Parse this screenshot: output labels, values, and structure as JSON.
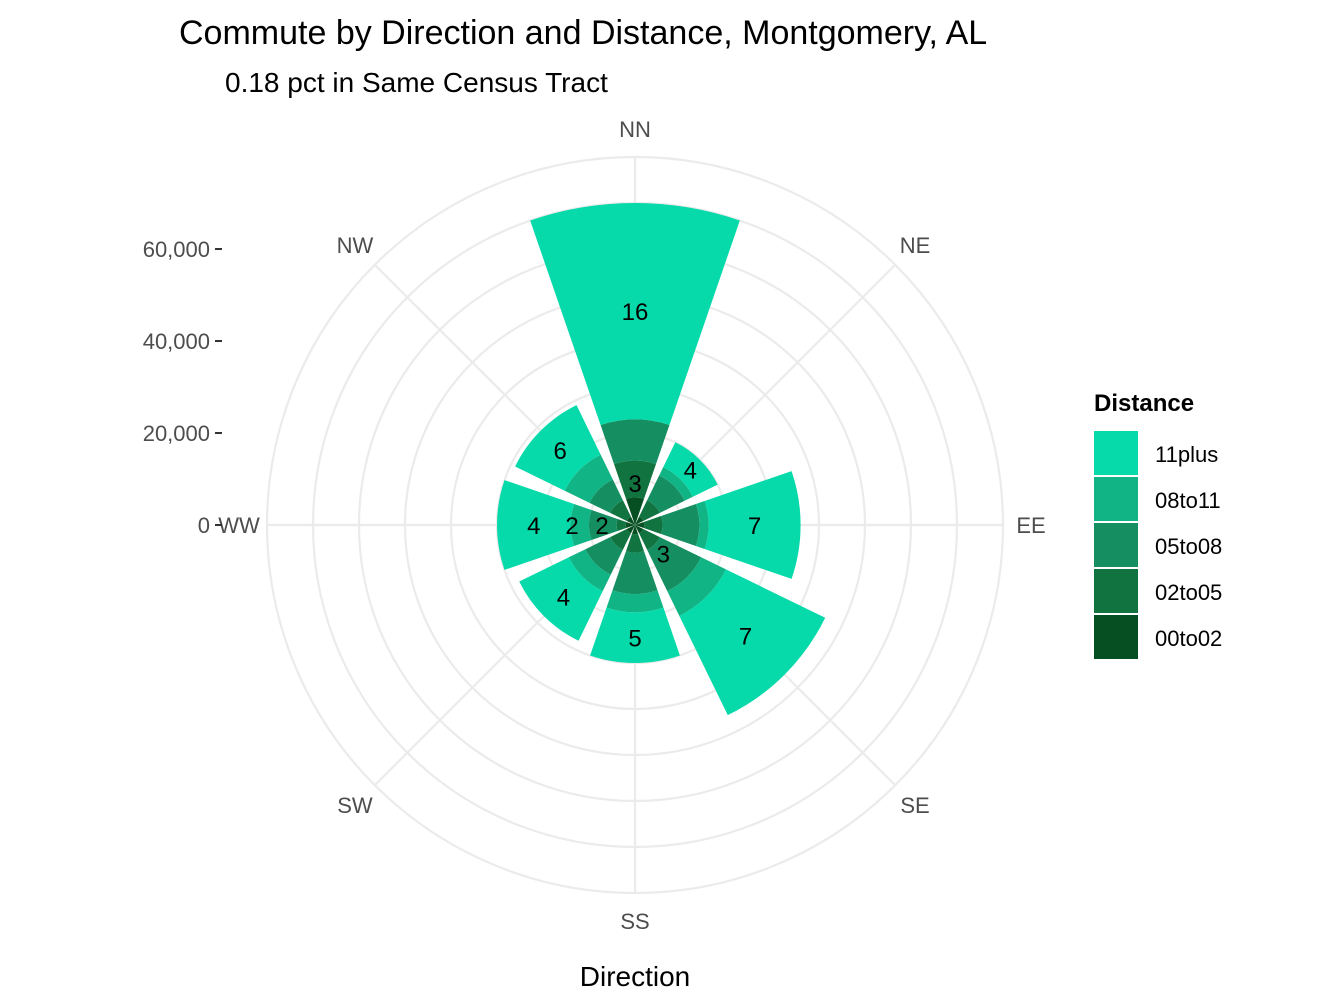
{
  "chart_data": {
    "type": "polar-stacked-bar",
    "title": "Commute by Direction and Distance, Montgomery, AL",
    "subtitle": "0.18 pct in Same Census Tract",
    "xlabel": "Direction",
    "directions": [
      "NN",
      "NE",
      "EE",
      "SE",
      "SS",
      "SW",
      "WW",
      "NW"
    ],
    "radial_ticks": [
      {
        "value": 0,
        "label": "0"
      },
      {
        "value": 20000,
        "label": "20,000"
      },
      {
        "value": 40000,
        "label": "40,000"
      },
      {
        "value": 60000,
        "label": "60,000"
      }
    ],
    "rmax": 80000,
    "grid": true,
    "legend": {
      "title": "Distance",
      "position": "right",
      "items": [
        {
          "name": "11plus",
          "color": "#06d9aa"
        },
        {
          "name": "08to11",
          "color": "#11b484"
        },
        {
          "name": "05to08",
          "color": "#158f61"
        },
        {
          "name": "02to05",
          "color": "#107340"
        },
        {
          "name": "00to02",
          "color": "#064f22"
        }
      ]
    },
    "series_order_inner_to_outer": [
      "00to02",
      "02to05",
      "05to08",
      "08to11",
      "11plus"
    ],
    "stacks": [
      {
        "direction": "NN",
        "values": {
          "00to02": 6000,
          "02to05": 8000,
          "05to08": 9000,
          "08to11": 0,
          "11plus": 47000
        },
        "label": "16"
      },
      {
        "direction": "NE",
        "values": {
          "00to02": 2000,
          "02to05": 4000,
          "05to08": 6000,
          "08to11": 2000,
          "11plus": 6000
        },
        "label": "4"
      },
      {
        "direction": "EE",
        "values": {
          "00to02": 2000,
          "02to05": 4000,
          "05to08": 8000,
          "08to11": 2000,
          "11plus": 20000
        },
        "label": "7"
      },
      {
        "direction": "SE",
        "values": {
          "00to02": 2000,
          "02to05": 4000,
          "05to08": 10000,
          "08to11": 6000,
          "11plus": 24000
        },
        "label": "7"
      },
      {
        "direction": "SS",
        "values": {
          "00to02": 2000,
          "02to05": 4000,
          "05to08": 9000,
          "08to11": 4000,
          "11plus": 11000
        },
        "label": "5"
      },
      {
        "direction": "SW",
        "values": {
          "00to02": 2000,
          "02to05": 4000,
          "05to08": 6000,
          "08to11": 4000,
          "11plus": 12000
        },
        "label": "4"
      },
      {
        "direction": "WW",
        "values": {
          "00to02": 2000,
          "02to05": 2000,
          "05to08": 6000,
          "08to11": 4000,
          "11plus": 16000
        },
        "label": "4"
      },
      {
        "direction": "NW",
        "values": {
          "00to02": 2000,
          "02to05": 4000,
          "05to08": 5000,
          "08to11": 6000,
          "11plus": 12000
        },
        "label": "6"
      }
    ],
    "inner_labels": [
      {
        "direction": "NN",
        "label": "3"
      },
      {
        "direction": "SE",
        "label": "3"
      },
      {
        "direction": "WW",
        "label": "2"
      },
      {
        "direction": "WW",
        "label": "2"
      }
    ]
  }
}
